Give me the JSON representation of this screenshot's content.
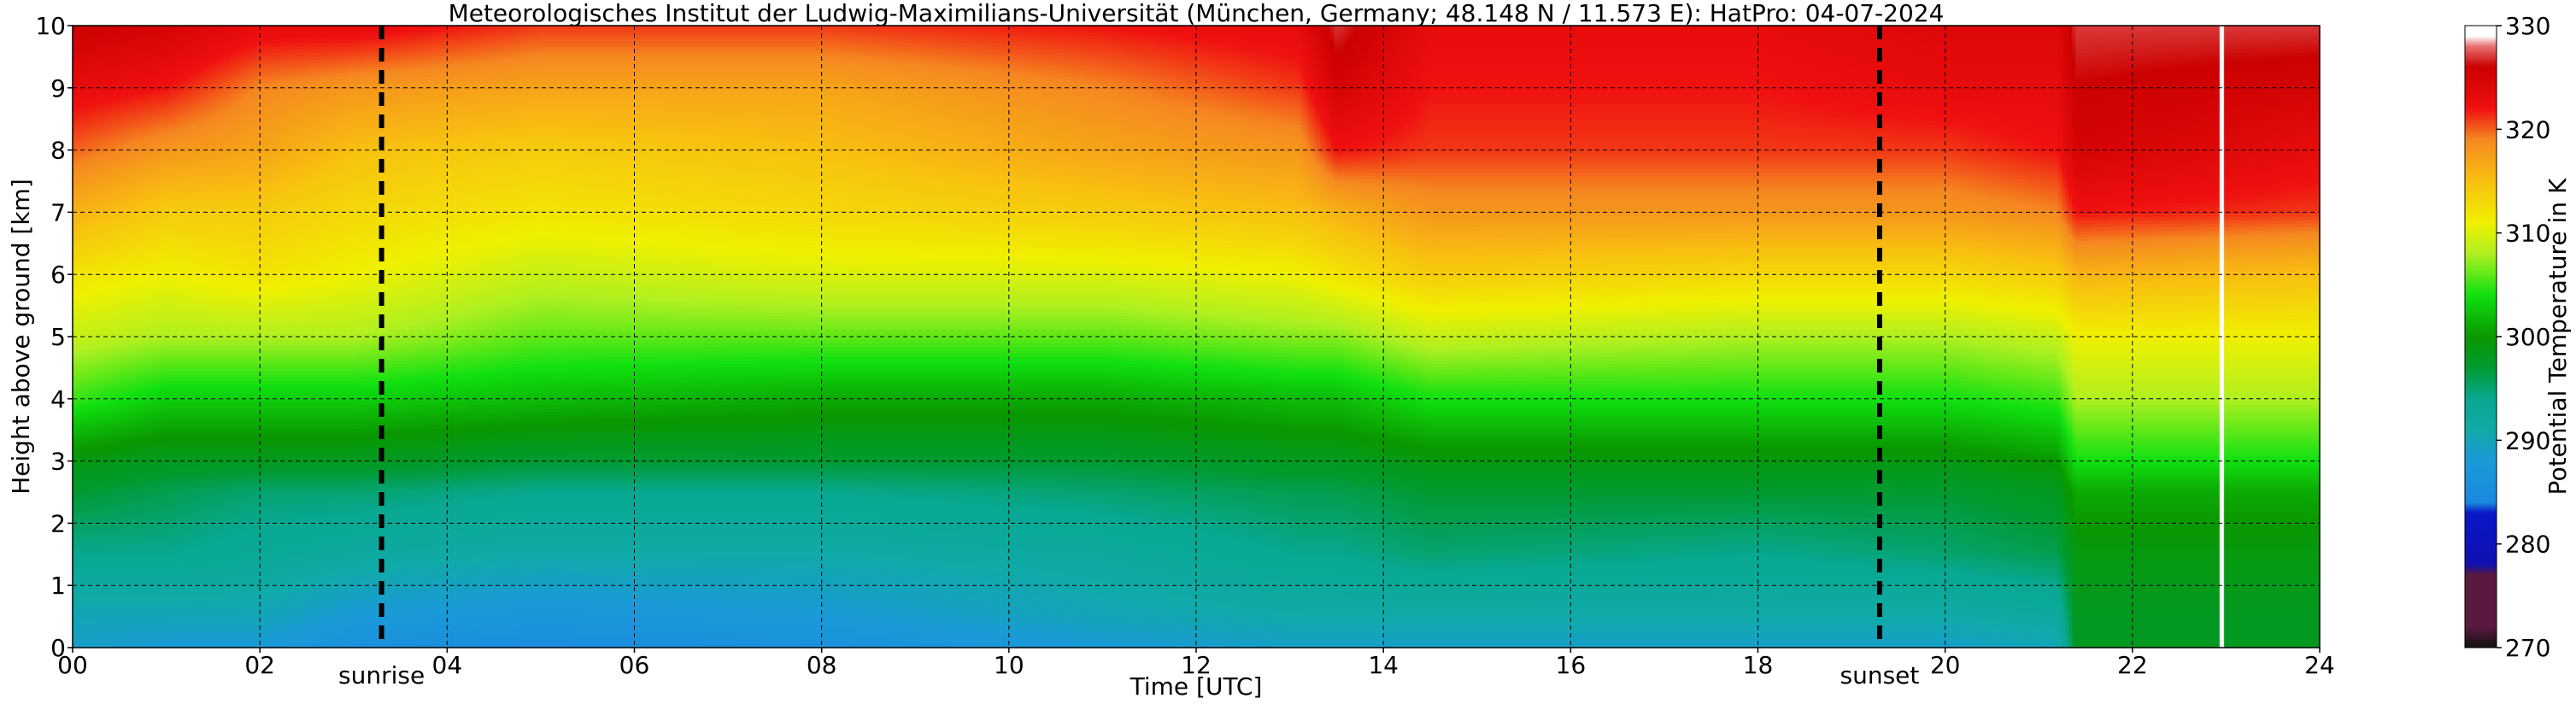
{
  "chart_data": {
    "type": "heatmap",
    "title": "Meteorologisches Institut der Ludwig-Maximilians-Universität (München, Germany; 48.148 N / 11.573 E):    HatPro: 04-07-2024",
    "xlabel": "Time [UTC]",
    "ylabel": "Height above ground [km]",
    "xlim": [
      0,
      24
    ],
    "ylim": [
      0,
      10
    ],
    "x_ticks": [
      0,
      2,
      4,
      6,
      8,
      10,
      12,
      14,
      16,
      18,
      20,
      22,
      24
    ],
    "x_tick_labels": [
      "00",
      "02",
      "04",
      "06",
      "08",
      "10",
      "12",
      "14",
      "16",
      "18",
      "20",
      "22",
      "24"
    ],
    "y_ticks": [
      0,
      1,
      2,
      3,
      4,
      5,
      6,
      7,
      8,
      9,
      10
    ],
    "y_tick_labels": [
      "0",
      "1",
      "2",
      "3",
      "4",
      "5",
      "6",
      "7",
      "8",
      "9",
      "10"
    ],
    "grid": true,
    "annotations": [
      {
        "label": "sunrise",
        "time": 3.3
      },
      {
        "label": "sunset",
        "time": 19.3
      }
    ],
    "missing_data_time": 22.95,
    "colorbar": {
      "label": "Potential Temperature in K",
      "range": [
        270,
        330
      ],
      "ticks": [
        270,
        280,
        290,
        300,
        310,
        320,
        330
      ],
      "tick_labels": [
        "270",
        "280",
        "290",
        "300",
        "310",
        "320",
        "330"
      ],
      "colors": [
        [
          270,
          "#111111"
        ],
        [
          272,
          "#5a1a40"
        ],
        [
          277,
          "#5a1a40"
        ],
        [
          278,
          "#1010b0"
        ],
        [
          283,
          "#0818c8"
        ],
        [
          284,
          "#1a88e0"
        ],
        [
          288,
          "#1a9ad8"
        ],
        [
          291,
          "#10aaa8"
        ],
        [
          294,
          "#08a890"
        ],
        [
          297,
          "#009a30"
        ],
        [
          300,
          "#0a9800"
        ],
        [
          304,
          "#10e010"
        ],
        [
          308,
          "#b0f020"
        ],
        [
          311,
          "#f0f000"
        ],
        [
          315,
          "#f8c010"
        ],
        [
          319,
          "#f58820"
        ],
        [
          322,
          "#f01010"
        ],
        [
          326,
          "#cc0000"
        ],
        [
          328,
          "#e87070"
        ],
        [
          329,
          "#ffffff"
        ],
        [
          330,
          "#ffffff"
        ]
      ]
    },
    "profile_heights_km": [
      0,
      0.5,
      1.5,
      2.5,
      3,
      4,
      5,
      6,
      7,
      8,
      9,
      10
    ],
    "profile_times_h": [
      0,
      1,
      2,
      3,
      5,
      8,
      11,
      13.1,
      13.5,
      14.5,
      18,
      20,
      21.2,
      21.4,
      24
    ],
    "series": [
      {
        "time": 0,
        "theta_K": [
          289,
          290,
          294,
          297,
          299,
          305,
          309,
          312,
          316,
          320,
          323,
          326
        ]
      },
      {
        "time": 1,
        "theta_K": [
          288,
          290,
          294,
          296,
          298,
          303,
          308,
          311,
          314,
          318,
          322,
          325
        ]
      },
      {
        "time": 2,
        "theta_K": [
          288,
          290,
          293,
          295,
          298,
          303,
          308,
          312,
          314,
          317,
          319,
          323
        ]
      },
      {
        "time": 3,
        "theta_K": [
          286,
          288,
          292,
          295,
          298,
          303,
          308,
          311,
          313,
          315,
          318,
          323
        ]
      },
      {
        "time": 5,
        "theta_K": [
          285,
          287,
          291,
          294,
          297,
          302,
          306,
          309,
          312,
          314,
          317,
          321
        ]
      },
      {
        "time": 8,
        "theta_K": [
          286,
          288,
          291,
          294,
          297,
          301,
          306,
          310,
          313,
          315,
          317,
          321
        ]
      },
      {
        "time": 11,
        "theta_K": [
          288,
          290,
          292,
          295,
          297,
          301,
          306,
          310,
          314,
          317,
          319,
          322
        ]
      },
      {
        "time": 13.1,
        "theta_K": [
          289,
          291,
          294,
          296,
          298,
          302,
          307,
          311,
          315,
          318,
          321,
          323
        ]
      },
      {
        "time": 13.5,
        "theta_K": [
          289,
          291,
          294,
          296,
          298,
          302,
          307,
          312,
          316,
          322,
          325,
          327
        ]
      },
      {
        "time": 14.5,
        "theta_K": [
          289,
          291,
          295,
          297,
          299,
          304,
          309,
          314,
          318,
          321,
          322,
          323
        ]
      },
      {
        "time": 18,
        "theta_K": [
          289,
          291,
          294,
          297,
          299,
          304,
          308,
          313,
          318,
          321,
          322,
          323
        ]
      },
      {
        "time": 20,
        "theta_K": [
          289,
          291,
          295,
          297,
          299,
          304,
          308,
          313,
          318,
          321,
          323,
          324
        ]
      },
      {
        "time": 21.2,
        "theta_K": [
          290,
          292,
          296,
          298,
          300,
          305,
          309,
          314,
          319,
          322,
          323,
          324
        ]
      },
      {
        "time": 21.4,
        "theta_K": [
          298,
          298,
          299,
          301,
          304,
          308,
          311,
          316,
          322,
          325,
          326,
          327
        ]
      },
      {
        "time": 24,
        "theta_K": [
          298,
          298,
          299,
          301,
          304,
          308,
          311,
          315,
          321,
          323,
          325,
          327
        ]
      }
    ]
  }
}
